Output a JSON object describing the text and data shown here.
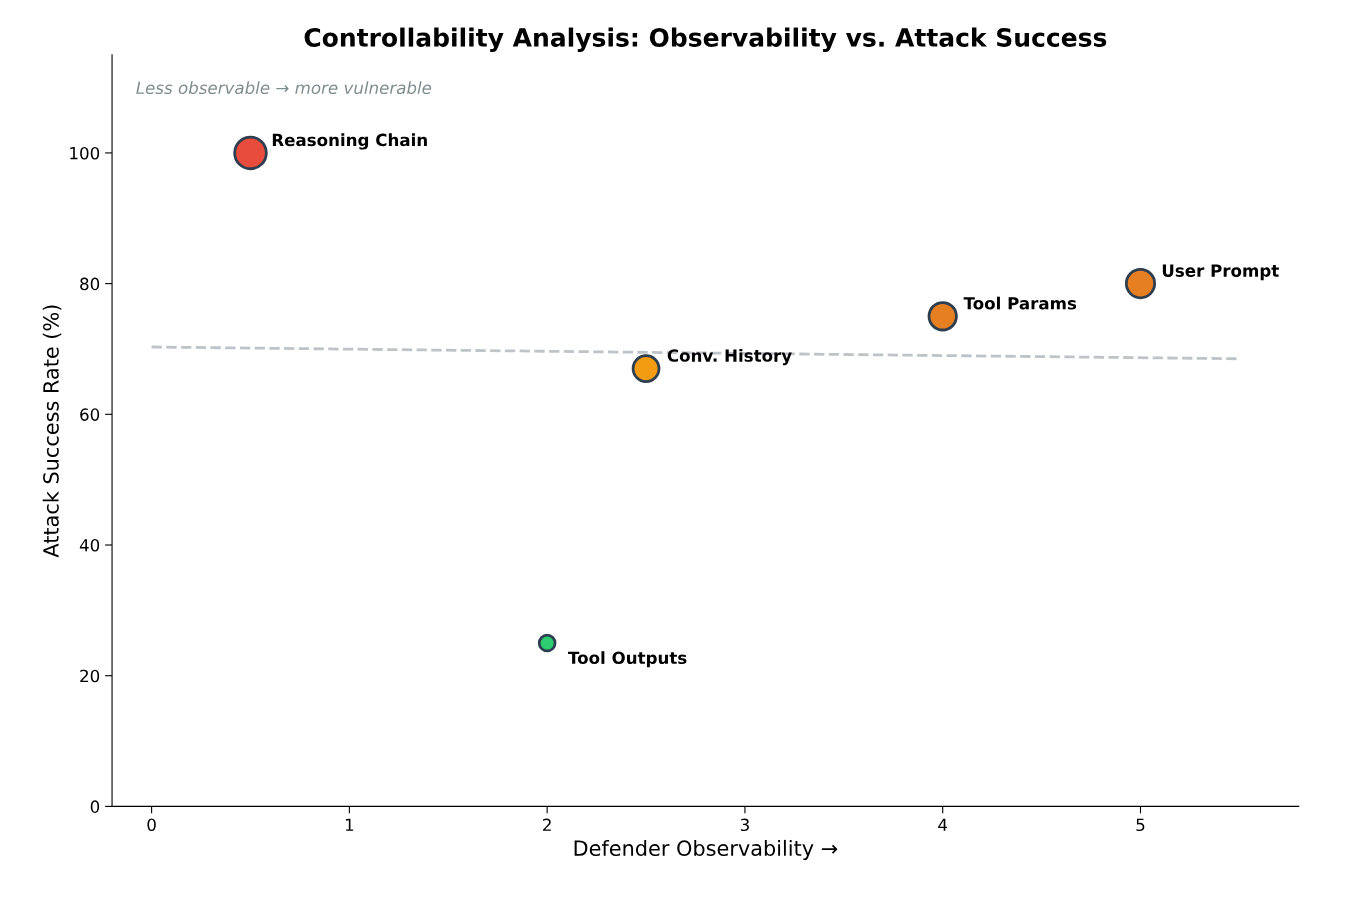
{
  "chart_data": {
    "type": "bubble",
    "title": "Controllability Analysis: Observability vs. Attack Success",
    "xlabel": "Defender Observability →",
    "ylabel": "Attack Success Rate (%)",
    "xlim": [
      -0.2,
      5.8
    ],
    "xticks": [
      0,
      1,
      2,
      3,
      4,
      5
    ],
    "ylim": [
      0,
      115
    ],
    "yticks": [
      0,
      20,
      40,
      60,
      80,
      100
    ],
    "grid": false,
    "legend": false,
    "series": [
      {
        "x": [
          0.5,
          5,
          4,
          2.5,
          2
        ],
        "values": [
          100,
          80,
          75,
          67,
          25
        ],
        "sizes": [
          1,
          0.8,
          0.75,
          0.67,
          0.25
        ],
        "colors": [
          "#e74c3c",
          "#e67e22",
          "#e67e22",
          "#f39c12",
          "#2ecc71"
        ]
      },
      {
        "type": "line",
        "x": [
          0,
          5.5
        ],
        "values": [
          70.3,
          68.5
        ],
        "color": "#bdc3c7",
        "line_style": "dashed"
      }
    ],
    "annotations": [
      "Less observable → more vulnerable",
      {
        "text": "Reasoning Chain",
        "x": 0.5,
        "y": 100
      },
      {
        "text": "User Prompt",
        "x": 5,
        "y": 80
      },
      {
        "text": "Tool Params",
        "x": 4,
        "y": 75
      },
      {
        "text": "Conv. History",
        "x": 2.5,
        "y": 67
      },
      {
        "text": "Tool Outputs",
        "x": 2,
        "y": 25
      }
    ]
  }
}
